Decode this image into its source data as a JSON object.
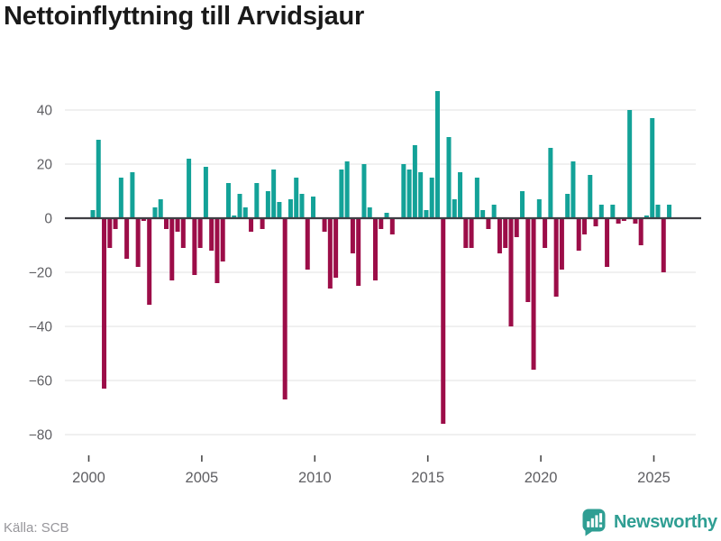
{
  "title": "Nettoinflyttning till Arvidsjaur",
  "source_label": "Källa: SCB",
  "branding": {
    "name": "Newsworthy",
    "icon": "bar-chart-speech-bubble-icon",
    "color": "#2f9e93"
  },
  "colors": {
    "positive": "#13a298",
    "negative": "#9c0d48",
    "grid": "#e7e7e7",
    "zero_line": "#3f3f44",
    "axis_text": "#5f5f63",
    "tick_mark": "#4a4a4a",
    "title_text": "#1a1a1a",
    "source_text": "#97969b",
    "background": "#ffffff"
  },
  "chart_data": {
    "type": "bar",
    "title": "Nettoinflyttning till Arvidsjaur",
    "frequency": "quarterly",
    "start_period": "2000-Q1",
    "end_period": "2025-Q3",
    "values": [
      3,
      29,
      -63,
      -11,
      -4,
      15,
      -15,
      17,
      -18,
      -1,
      -32,
      4,
      7,
      -4,
      -23,
      -5,
      -11,
      22,
      -21,
      -11,
      19,
      -12,
      -24,
      -16,
      13,
      1,
      9,
      4,
      -5,
      13,
      -4,
      10,
      18,
      6,
      -67,
      7,
      15,
      9,
      -19,
      8,
      0,
      -5,
      -26,
      -22,
      18,
      21,
      -13,
      -25,
      20,
      4,
      -23,
      -4,
      2,
      -6,
      0,
      20,
      18,
      27,
      17,
      3,
      15,
      47,
      -76,
      30,
      7,
      17,
      -11,
      -11,
      15,
      3,
      -4,
      5,
      -13,
      -11,
      -40,
      -7,
      10,
      -31,
      -56,
      7,
      -11,
      26,
      -29,
      -19,
      9,
      21,
      -12,
      -6,
      16,
      -3,
      5,
      -18,
      5,
      -2,
      -1,
      40,
      -2,
      -10,
      1,
      37,
      5,
      -20,
      5
    ],
    "y_ticks": [
      40,
      20,
      0,
      -20,
      -40,
      -60,
      -80
    ],
    "ylim": [
      -86,
      51
    ],
    "x_tick_years": [
      2000,
      2005,
      2010,
      2015,
      2020,
      2025
    ],
    "x_tick_labels": [
      "2000",
      "2005",
      "2010",
      "2015",
      "2020",
      "2025"
    ],
    "grid": true,
    "legend": false,
    "bar_colors": {
      "positive": "#13a298",
      "negative": "#9c0d48"
    }
  }
}
